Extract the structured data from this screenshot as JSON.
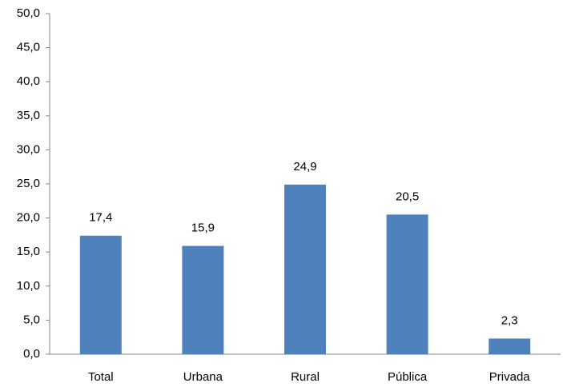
{
  "chart_data": {
    "type": "bar",
    "categories": [
      "Total",
      "Urbana",
      "Rural",
      "Pública",
      "Privada"
    ],
    "values": [
      17.4,
      15.9,
      24.9,
      20.5,
      2.3
    ],
    "value_labels": [
      "17,4",
      "15,9",
      "24,9",
      "20,5",
      "2,3"
    ],
    "color": "#4f81bd",
    "ylim": [
      0,
      50
    ],
    "yticks": [
      {
        "value": 0,
        "label": "0,0"
      },
      {
        "value": 5,
        "label": "5,0"
      },
      {
        "value": 10,
        "label": "10,0"
      },
      {
        "value": 15,
        "label": "15,0"
      },
      {
        "value": 20,
        "label": "20,0"
      },
      {
        "value": 25,
        "label": "25,0"
      },
      {
        "value": 30,
        "label": "30,0"
      },
      {
        "value": 35,
        "label": "35,0"
      },
      {
        "value": 40,
        "label": "40,0"
      },
      {
        "value": 45,
        "label": "45,0"
      },
      {
        "value": 50,
        "label": "50,0"
      }
    ],
    "grid": false
  }
}
